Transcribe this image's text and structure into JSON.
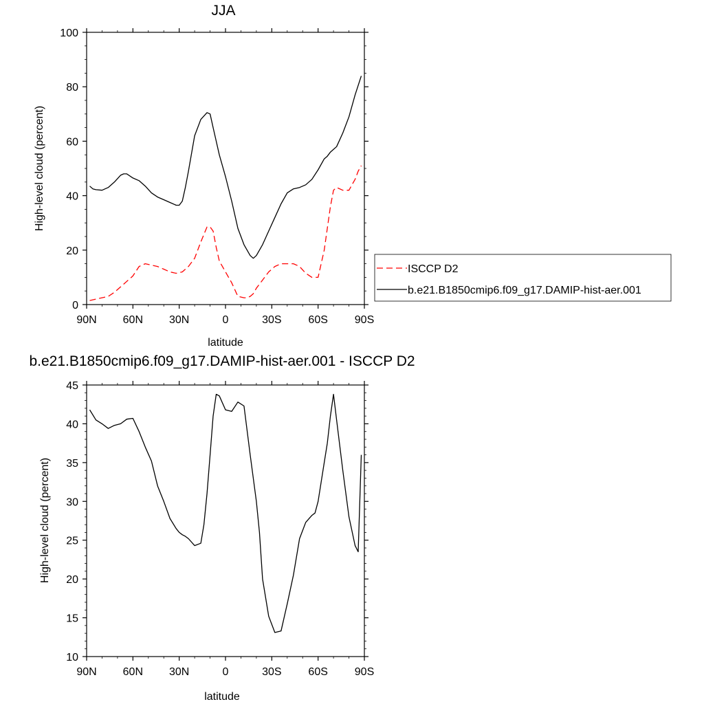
{
  "chart_data": [
    {
      "type": "line",
      "title": "JJA",
      "xlabel": "latitude",
      "ylabel": "High-level cloud (percent)",
      "xlim": [
        90,
        -90
      ],
      "ylim": [
        0,
        100
      ],
      "xtick_values": [
        90,
        60,
        30,
        0,
        -30,
        -60,
        -90
      ],
      "xtick_labels": [
        "90N",
        "60N",
        "30N",
        "0",
        "30S",
        "60S",
        "90S"
      ],
      "ytick_values": [
        0,
        20,
        40,
        60,
        80,
        100
      ],
      "ytick_labels": [
        "0",
        "20",
        "40",
        "60",
        "80",
        "100"
      ],
      "grid": false,
      "legend_position": "right",
      "series": [
        {
          "name": "ISCCP D2",
          "color": "#ff0000",
          "dash": "dashed",
          "x": [
            88,
            84,
            80,
            76,
            72,
            68,
            64,
            60,
            56,
            52,
            48,
            44,
            40,
            36,
            32,
            28,
            24,
            20,
            16,
            12,
            10,
            8,
            6,
            4,
            0,
            -4,
            -8,
            -12,
            -14,
            -16,
            -18,
            -20,
            -24,
            -28,
            -32,
            -36,
            -40,
            -44,
            -48,
            -52,
            -56,
            -58,
            -60,
            -64,
            -66,
            -68,
            -70,
            -72,
            -76,
            -80,
            -82,
            -84,
            -86,
            -88
          ],
          "y": [
            1.5,
            2,
            2.5,
            3,
            4.5,
            6.5,
            8.5,
            10.5,
            14,
            15,
            14.5,
            14,
            13,
            12,
            11.5,
            12,
            14,
            17,
            23,
            28.5,
            28.5,
            27,
            21,
            16,
            12,
            8,
            3,
            2.5,
            2.5,
            3,
            4,
            6,
            9,
            12,
            14,
            15,
            15,
            15,
            14,
            11.5,
            10,
            10,
            10,
            20,
            28,
            36,
            42,
            43,
            42,
            42,
            44,
            46,
            49,
            51
          ]
        },
        {
          "name": "b.e21.B1850cmip6.f09_g17.DAMIP-hist-aer.001",
          "color": "#000000",
          "dash": "solid",
          "x": [
            88,
            86,
            84,
            80,
            76,
            72,
            68,
            66,
            64,
            60,
            56,
            52,
            48,
            44,
            40,
            36,
            32,
            30,
            28,
            26,
            24,
            20,
            16,
            12,
            10,
            8,
            6,
            4,
            0,
            -4,
            -8,
            -12,
            -16,
            -18,
            -20,
            -22,
            -24,
            -28,
            -32,
            -36,
            -40,
            -44,
            -48,
            -52,
            -56,
            -60,
            -64,
            -66,
            -68,
            -70,
            -72,
            -76,
            -80,
            -84,
            -88
          ],
          "y": [
            43.5,
            42.5,
            42.2,
            42,
            43,
            45,
            47.5,
            48,
            48,
            46.5,
            45.5,
            43.5,
            41,
            39.5,
            38.5,
            37.5,
            36.5,
            36.5,
            38,
            43,
            49,
            62,
            68,
            70.5,
            70,
            65,
            60,
            55,
            47,
            38,
            28,
            22,
            18,
            17,
            18,
            20,
            22,
            27,
            32,
            37,
            41,
            42.5,
            43,
            44,
            46,
            49.5,
            53.5,
            54.5,
            56,
            57,
            58,
            63,
            69,
            77,
            84
          ]
        }
      ]
    },
    {
      "type": "line",
      "title": "b.e21.B1850cmip6.f09_g17.DAMIP-hist-aer.001 - ISCCP D2",
      "xlabel": "latitude",
      "ylabel": "High-level cloud (percent)",
      "xlim": [
        90,
        -90
      ],
      "ylim": [
        10,
        45
      ],
      "xtick_values": [
        90,
        60,
        30,
        0,
        -30,
        -60,
        -90
      ],
      "xtick_labels": [
        "90N",
        "60N",
        "30N",
        "0",
        "30S",
        "60S",
        "90S"
      ],
      "ytick_values": [
        10,
        15,
        20,
        25,
        30,
        35,
        40,
        45
      ],
      "ytick_labels": [
        "10",
        "15",
        "20",
        "25",
        "30",
        "35",
        "40",
        "45"
      ],
      "grid": false,
      "series": [
        {
          "color": "#000000",
          "dash": "solid",
          "x": [
            88,
            84,
            80,
            76,
            72,
            68,
            64,
            60,
            56,
            52,
            48,
            44,
            40,
            36,
            32,
            30,
            28,
            26,
            24,
            20,
            16,
            14,
            12,
            10,
            8,
            6,
            4,
            0,
            -4,
            -8,
            -12,
            -16,
            -20,
            -22,
            -24,
            -28,
            -32,
            -36,
            -40,
            -44,
            -48,
            -52,
            -56,
            -58,
            -60,
            -64,
            -66,
            -68,
            -70,
            -72,
            -76,
            -80,
            -84,
            -86,
            -88
          ],
          "y": [
            41.8,
            40.5,
            40,
            39.4,
            39.8,
            40,
            40.6,
            40.7,
            39,
            37,
            35.2,
            32,
            30,
            27.8,
            26.5,
            26,
            25.7,
            25.5,
            25.2,
            24.3,
            24.6,
            27,
            31,
            36,
            41,
            43.8,
            43.6,
            41.8,
            41.6,
            42.8,
            42.3,
            36,
            30,
            26,
            20,
            15.2,
            13.1,
            13.3,
            16.8,
            20.5,
            25.2,
            27.3,
            28.2,
            28.5,
            30,
            35,
            37.5,
            41,
            43.8,
            40.5,
            34,
            28,
            24.3,
            23.5,
            36
          ]
        }
      ]
    }
  ]
}
